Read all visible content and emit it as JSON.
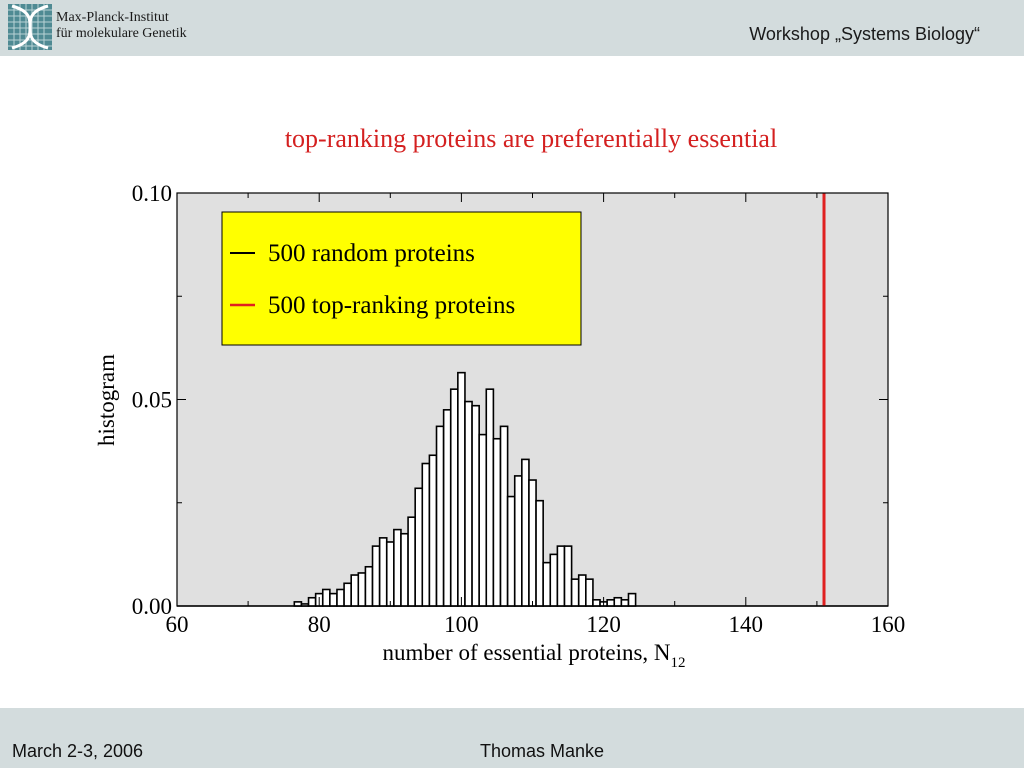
{
  "header": {
    "institute_line1": "Max-Planck-Institut",
    "institute_line2": "für molekulare Genetik",
    "workshop": "Workshop „Systems Biology“",
    "logo_icon": "dna-helix-icon"
  },
  "footer": {
    "date": "March 2-3, 2006",
    "author": "Thomas Manke"
  },
  "colors": {
    "header_bg": "#d3dcdd",
    "plot_bg": "#e0e0e0",
    "legend_bg": "#ffff00",
    "top_ranking": "#e02020",
    "random": "#000000"
  },
  "chart_data": {
    "type": "bar",
    "title": "top-ranking proteins are preferentially essential",
    "xlabel": "number of essential proteins, N",
    "xlabel_subscript": "12",
    "ylabel": "histogram",
    "xlim": [
      60,
      160
    ],
    "ylim": [
      0,
      0.1
    ],
    "xticks": [
      "60",
      "80",
      "100",
      "120",
      "140",
      "160"
    ],
    "yticks": [
      "0.00",
      "0.05",
      "0.10"
    ],
    "grid": false,
    "legend_position": "top-left",
    "series": [
      {
        "name": "500 random proteins",
        "style": "histogram",
        "bin_width": 1,
        "x": [
          77,
          78,
          79,
          80,
          81,
          82,
          83,
          84,
          85,
          86,
          87,
          88,
          89,
          90,
          91,
          92,
          93,
          94,
          95,
          96,
          97,
          98,
          99,
          100,
          101,
          102,
          103,
          104,
          105,
          106,
          107,
          108,
          109,
          110,
          111,
          112,
          113,
          114,
          115,
          116,
          117,
          118,
          119,
          120,
          121,
          122,
          123,
          124
        ],
        "values": [
          0.001,
          0.0005,
          0.002,
          0.003,
          0.004,
          0.003,
          0.004,
          0.0055,
          0.0075,
          0.008,
          0.0095,
          0.0145,
          0.0165,
          0.0155,
          0.0185,
          0.0175,
          0.0215,
          0.0285,
          0.0345,
          0.0365,
          0.0435,
          0.0475,
          0.0525,
          0.0565,
          0.0495,
          0.0485,
          0.0415,
          0.0525,
          0.0405,
          0.0435,
          0.0265,
          0.0315,
          0.0355,
          0.0305,
          0.0255,
          0.0105,
          0.0125,
          0.0145,
          0.0145,
          0.0065,
          0.0075,
          0.0065,
          0.0015,
          0.001,
          0.0015,
          0.002,
          0.0015,
          0.003
        ]
      },
      {
        "name": "500 top-ranking proteins",
        "style": "vertical-line",
        "x": 151
      }
    ]
  }
}
